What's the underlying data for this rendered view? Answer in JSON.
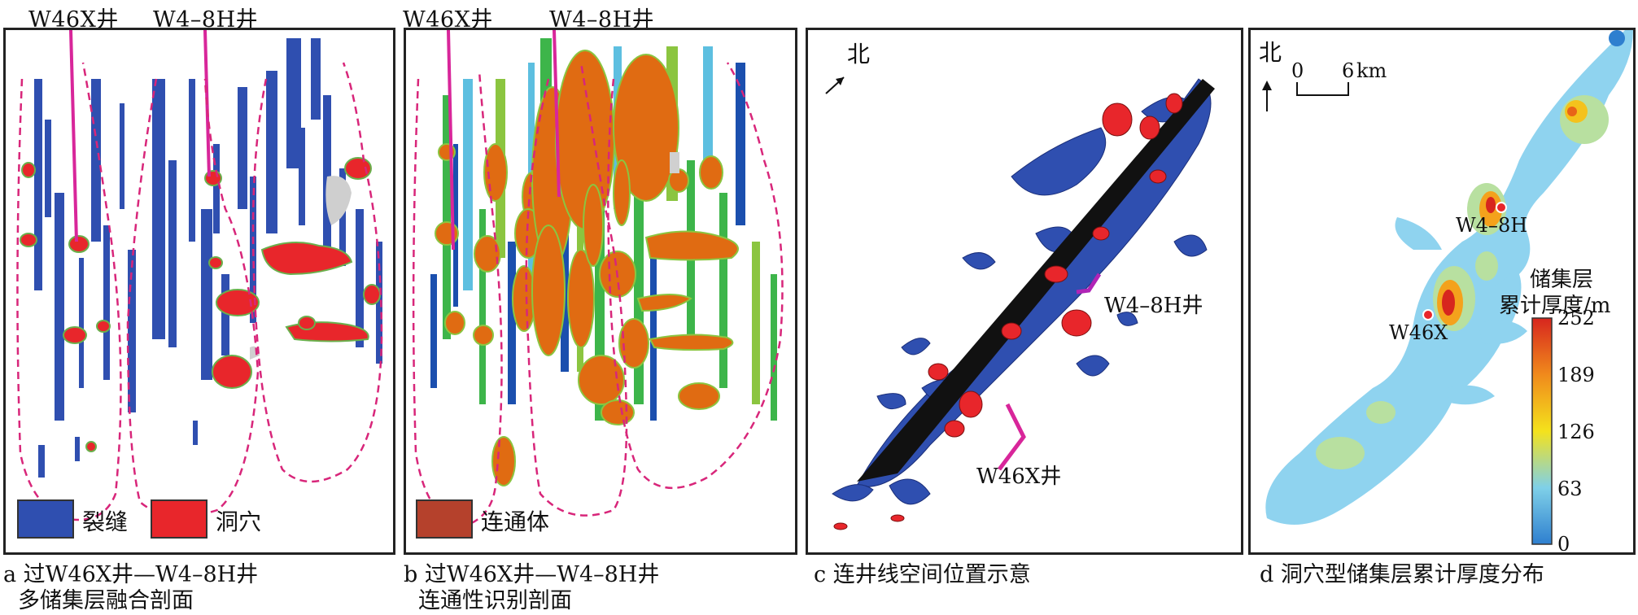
{
  "top_labels": {
    "a_well_1": "W46X井",
    "a_well_2": "W4–8H井",
    "b_well_1": "W46X井",
    "b_well_2": "W4–8H井"
  },
  "panel_a": {
    "legend": [
      {
        "label": "裂缝",
        "color": "#2f4fb0"
      },
      {
        "label": "洞穴",
        "color": "#e8262b"
      }
    ],
    "caption_line1": "a 过W46X井—W4–8H井",
    "caption_line2": "多储集层融合剖面"
  },
  "panel_b": {
    "legend": [
      {
        "label": "连通体",
        "color": "#b5412c"
      }
    ],
    "caption_line1": "b 过W46X井—W4–8H井",
    "caption_line2": "连通性识别剖面"
  },
  "panel_c": {
    "north": "北",
    "well_1": "W4–8H井",
    "well_2": "W46X井",
    "caption": "c 连井线空间位置示意"
  },
  "panel_d": {
    "north": "北",
    "scale_0": "0",
    "scale_6": "6",
    "scale_unit": "km",
    "well_1": "W4–8H",
    "well_2": "W46X",
    "colorbar_title_1": "储集层",
    "colorbar_title_2": "累计厚度/m",
    "colorbar_ticks": [
      "252",
      "189",
      "126",
      "63",
      "0"
    ],
    "caption": "d 洞穴型储集层累计厚度分布"
  },
  "colors": {
    "fracture": "#2f4fb0",
    "cave": "#e8262b",
    "connected": "#e06b12",
    "well_trace": "#d8269a",
    "dashed_boundary": "#d8267a"
  }
}
